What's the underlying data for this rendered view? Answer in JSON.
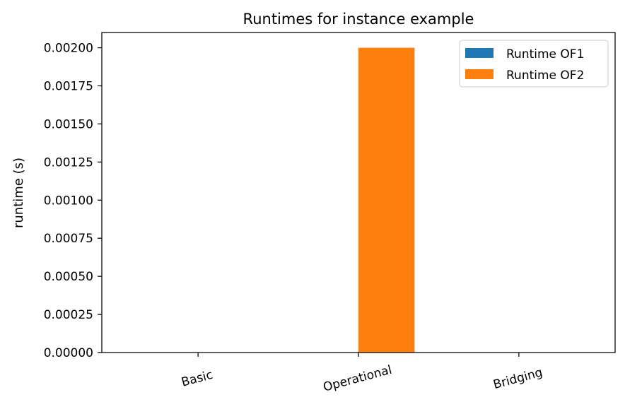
{
  "chart_data": {
    "type": "bar",
    "title": "Runtimes for instance example",
    "xlabel": "",
    "ylabel": "runtime (s)",
    "categories": [
      "Basic",
      "Operational",
      "Bridging"
    ],
    "series": [
      {
        "name": "Runtime OF1",
        "values": [
          0,
          0,
          0
        ],
        "color": "#1f77b4"
      },
      {
        "name": "Runtime OF2",
        "values": [
          0,
          0.002,
          0
        ],
        "color": "#ff7f0e"
      }
    ],
    "ylim": [
      0,
      0.0021
    ],
    "yticks": [
      0,
      0.00025,
      0.0005,
      0.00075,
      0.001,
      0.00125,
      0.0015,
      0.00175,
      0.002
    ],
    "ytick_labels": [
      "0.00000",
      "0.00025",
      "0.00050",
      "0.00075",
      "0.00100",
      "0.00125",
      "0.00150",
      "0.00175",
      "0.00200"
    ],
    "xtick_rotation_deg": -15,
    "grid": false,
    "legend_position": "upper-right"
  }
}
